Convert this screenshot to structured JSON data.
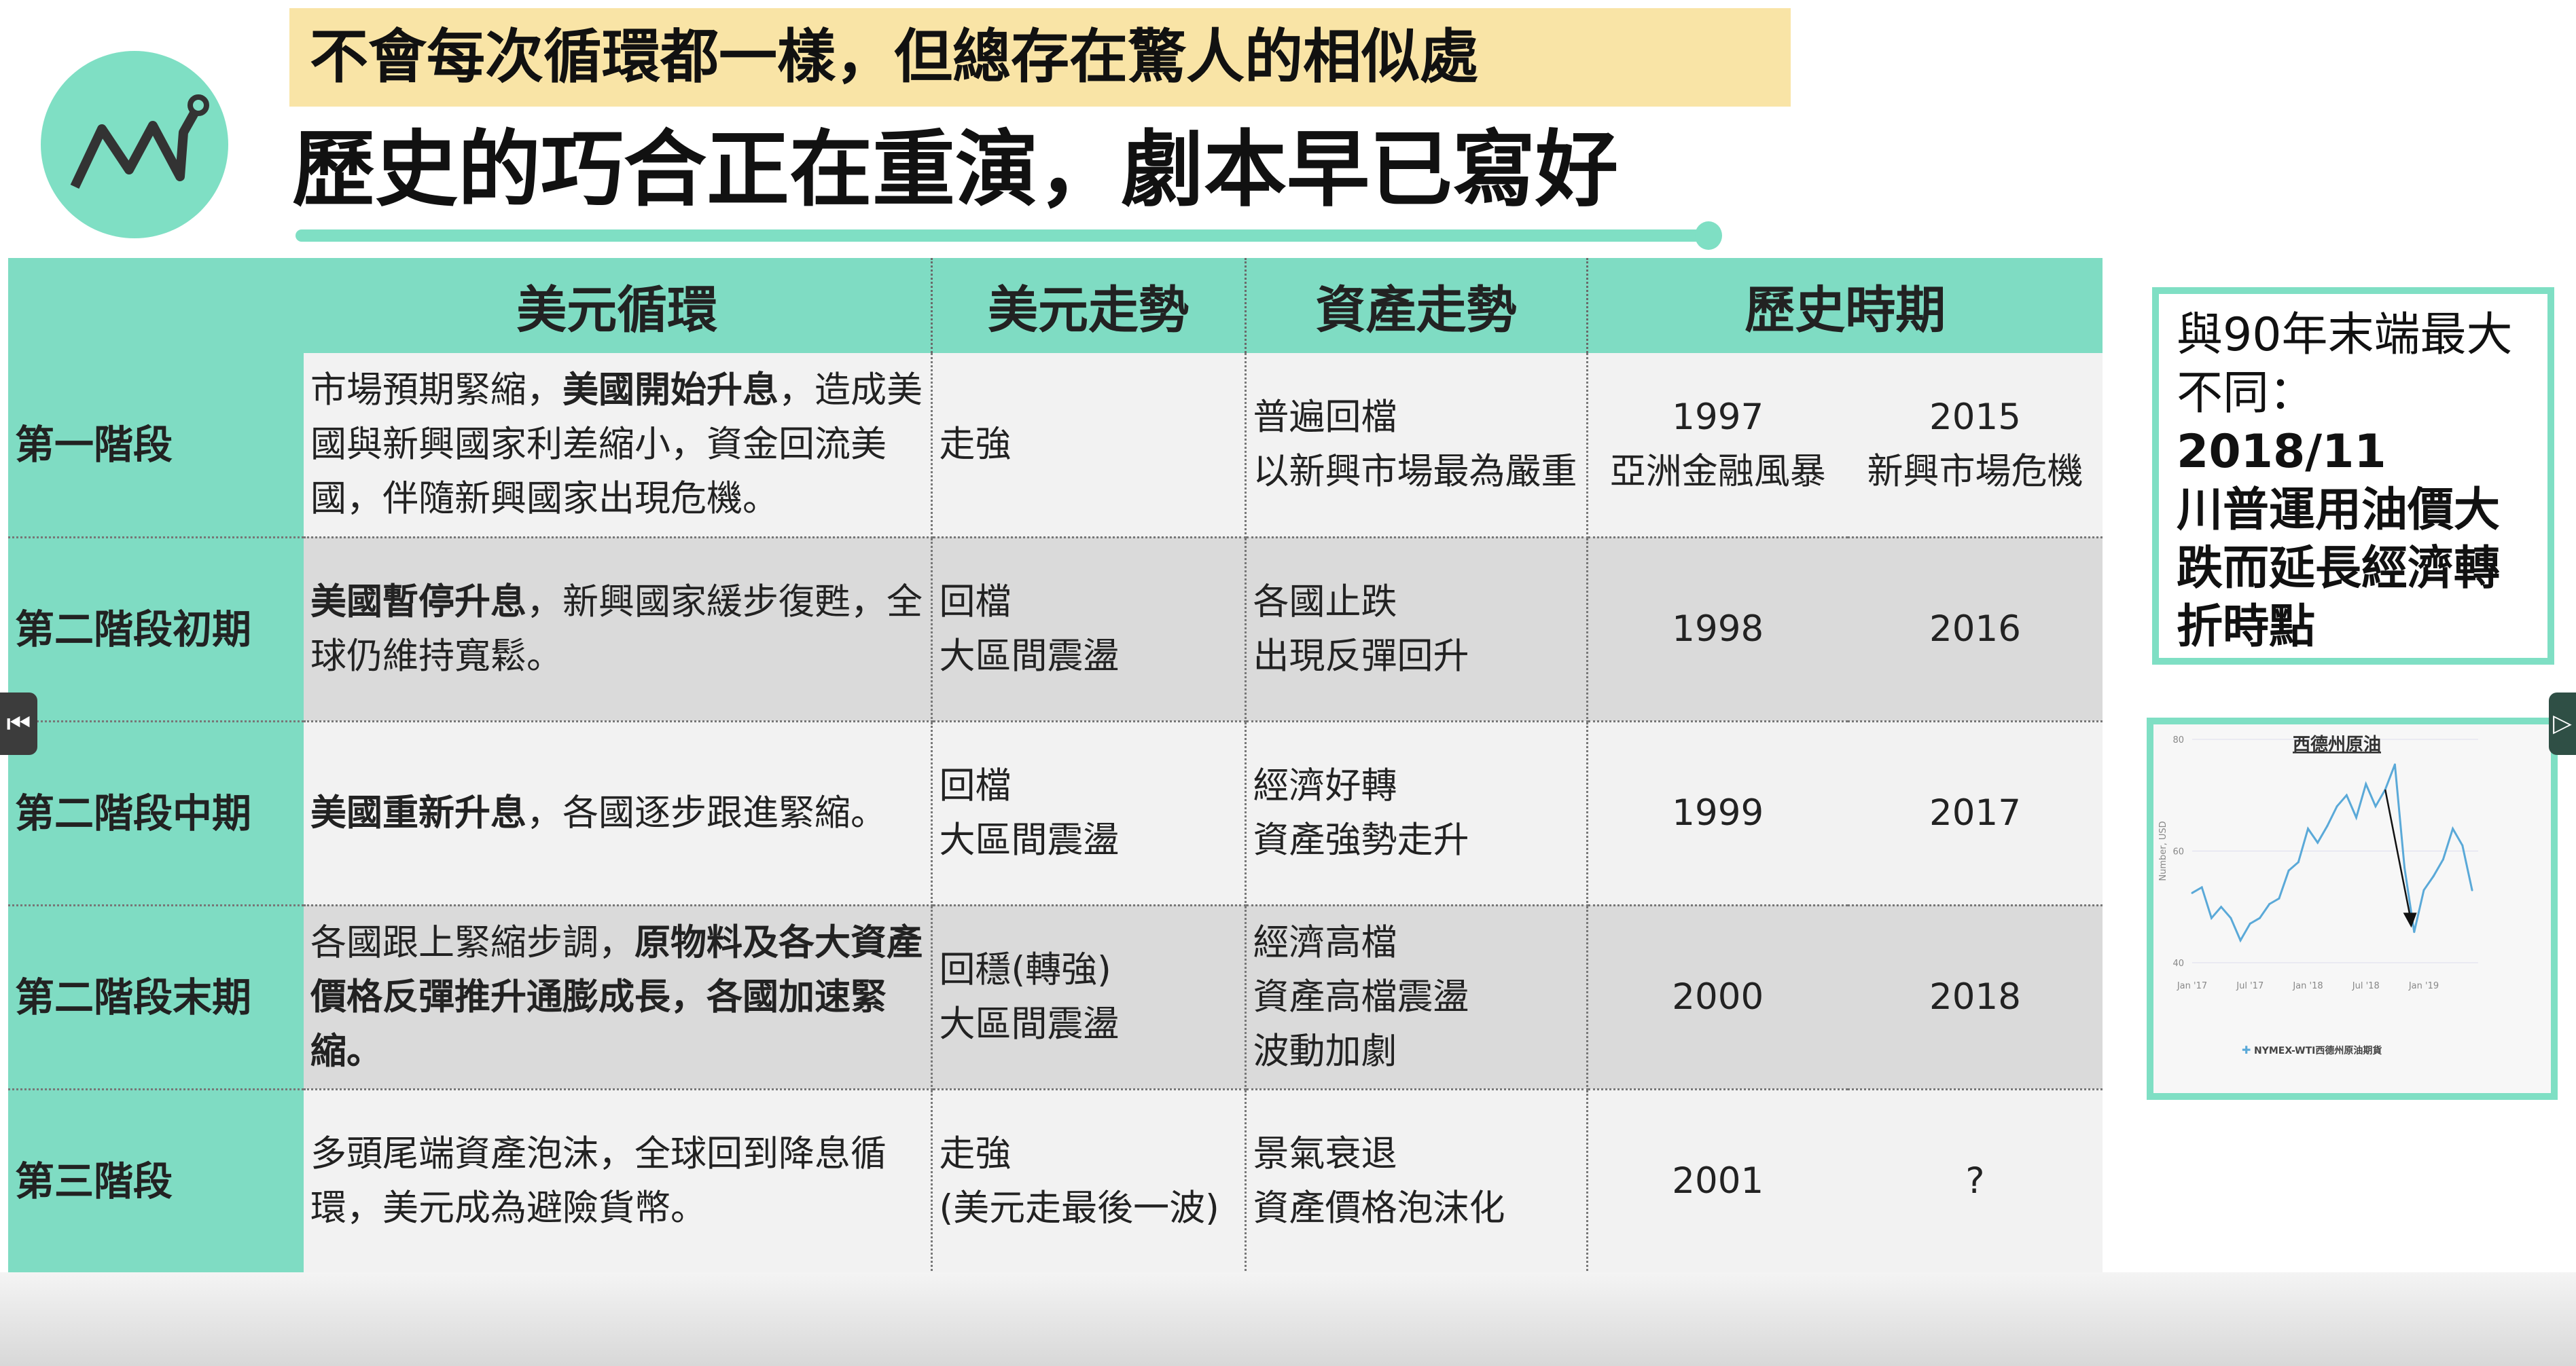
{
  "header": {
    "banner": "不會每次循環都一樣，但總存在驚人的相似處",
    "title": "歷史的巧合正在重演，劇本早已寫好"
  },
  "table": {
    "headers": [
      "美元循環",
      "美元走勢",
      "資產走勢",
      "歷史時期"
    ],
    "rows": [
      {
        "stage": "第一階段",
        "desc": [
          "市場預期緊縮，",
          "美國開始升息",
          "，造成美國與新興國家利差縮小，資金回流美國，伴隨新興國家出現危機。"
        ],
        "usd": [
          "走強"
        ],
        "asset": [
          "普遍回檔",
          "以新興市場最為嚴重"
        ],
        "p1": [
          "1997",
          "亞洲金融風暴"
        ],
        "p2": [
          "2015",
          "新興市場危機"
        ]
      },
      {
        "stage": "第二階段初期",
        "desc": [
          "美國暫停升息",
          "，新興國家緩步復甦，全球仍維持寬鬆。"
        ],
        "usd": [
          "回檔",
          "大區間震盪"
        ],
        "asset": [
          "各國止跌",
          "出現反彈回升"
        ],
        "p1": [
          "1998"
        ],
        "p2": [
          "2016"
        ]
      },
      {
        "stage": "第二階段中期",
        "desc": [
          "美國重新升息",
          "，各國逐步跟進緊縮。"
        ],
        "usd": [
          "回檔",
          "大區間震盪"
        ],
        "asset": [
          "經濟好轉",
          "資產強勢走升"
        ],
        "p1": [
          "1999"
        ],
        "p2": [
          "2017"
        ]
      },
      {
        "stage": "第二階段末期",
        "desc": [
          "各國跟上緊縮步調，",
          "原物料及各大資產價格反彈推升通膨成長，各國加速緊縮。"
        ],
        "usd": [
          "回穩(轉強)",
          "大區間震盪"
        ],
        "asset": [
          "經濟高檔",
          "資產高檔震盪",
          "波動加劇"
        ],
        "p1": [
          "2000"
        ],
        "p2": [
          "2018"
        ]
      },
      {
        "stage": "第三階段",
        "desc": [
          "多頭尾端資產泡沫，全球回到降息循環，美元成為避險貨幣。"
        ],
        "usd": [
          "走強",
          "(美元走最後一波)"
        ],
        "asset": [
          "景氣衰退",
          "資產價格泡沫化"
        ],
        "p1": [
          "2001"
        ],
        "p2": [
          "?"
        ]
      }
    ]
  },
  "note": {
    "line1": "與90年末端最大不同：",
    "line2": "2018/11",
    "line3": "川普運用油價大跌而延長經濟轉折時點"
  },
  "chart_data": {
    "type": "line",
    "title": "西德州原油",
    "ylabel": "Number, USD",
    "ylim": [
      40,
      80
    ],
    "yticks": [
      "40",
      "60",
      "80"
    ],
    "xticks": [
      "Jan '17",
      "Jul '17",
      "Jan '18",
      "Jul '18",
      "Jan '19"
    ],
    "series": [
      {
        "name": "NYMEX-WTI西德州原油期貨",
        "color": "#5aa9d8",
        "x": [
          "2017-01",
          "2017-02",
          "2017-03",
          "2017-04",
          "2017-05",
          "2017-06",
          "2017-07",
          "2017-08",
          "2017-09",
          "2017-10",
          "2017-11",
          "2017-12",
          "2018-01",
          "2018-02",
          "2018-03",
          "2018-04",
          "2018-05",
          "2018-06",
          "2018-07",
          "2018-08",
          "2018-09",
          "2018-10",
          "2018-11",
          "2018-12",
          "2019-01",
          "2019-02",
          "2019-03",
          "2019-04",
          "2019-05",
          "2019-06"
        ],
        "values": [
          52.5,
          53.5,
          48,
          50,
          48,
          44,
          47,
          48,
          50.5,
          51.5,
          56.5,
          58,
          64,
          61.5,
          64.5,
          68,
          70,
          66,
          72,
          68,
          71,
          75.5,
          57,
          45.5,
          53,
          55.5,
          58.5,
          64,
          61,
          53
        ]
      }
    ],
    "annotation": "arrow pointing down from Sep 2018 to Dec 2018"
  },
  "nav": {
    "prev": "⏮",
    "next": "▷"
  }
}
